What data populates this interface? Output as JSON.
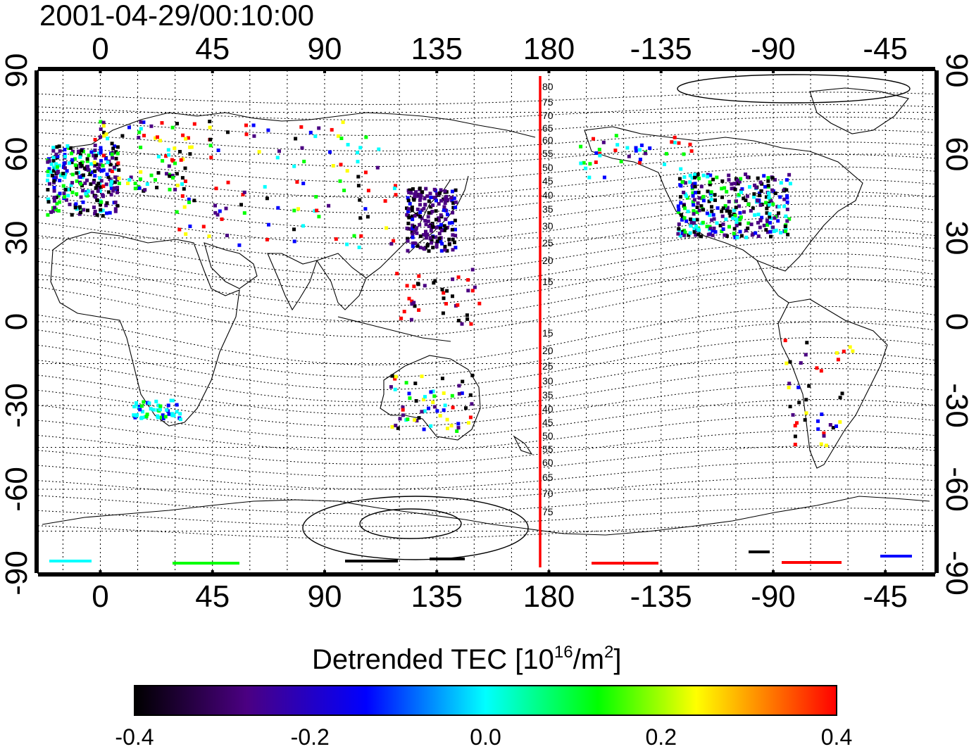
{
  "timestamp": "2001-04-29/00:10:00",
  "lon_ticks": [
    "0",
    "45",
    "90",
    "135",
    "180",
    "-135",
    "-90",
    "-45"
  ],
  "lat_ticks": [
    "90",
    "60",
    "30",
    "0",
    "-30",
    "-60",
    "-90"
  ],
  "magnetic_lat_labels_north": [
    "80",
    "75",
    "70",
    "65",
    "60",
    "55",
    "50",
    "45",
    "40",
    "35",
    "30",
    "25",
    "20",
    "15"
  ],
  "magnetic_lat_labels_south": [
    "15",
    "20",
    "25",
    "30",
    "35",
    "40",
    "45",
    "50",
    "55",
    "60",
    "65",
    "70",
    "75"
  ],
  "colorbar": {
    "title_main": "Detrended TEC  [10",
    "title_sup1": "16",
    "title_mid": "/m",
    "title_sup2": "2",
    "title_end": "]",
    "tick_labels": [
      "-0.4",
      "-0.2",
      "0.0",
      "0.2",
      "0.4"
    ],
    "range": [
      -0.4,
      0.4
    ],
    "colors": [
      "#000000",
      "#4b0082",
      "#0000ff",
      "#00ffff",
      "#00ff00",
      "#ffff00",
      "#ff0000"
    ]
  },
  "map": {
    "lon_range": [
      -25,
      335
    ],
    "lat_range": [
      -90,
      90
    ],
    "marker_line_color": "#ff0000",
    "marker_line_lon": 178,
    "grid": true
  }
}
